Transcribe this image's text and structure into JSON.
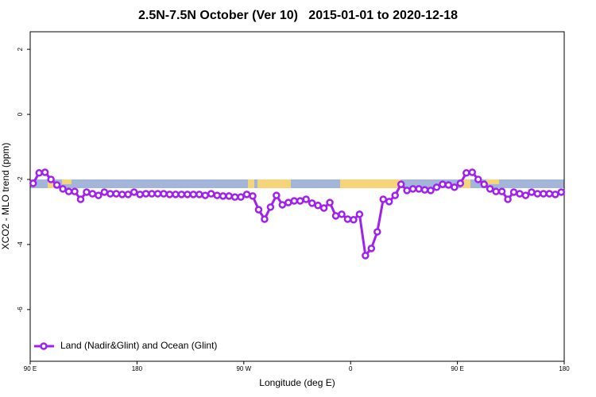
{
  "chart_data": {
    "type": "line",
    "title": "2.5N-7.5N October (Ver 10)   2015-01-01 to 2020-12-18",
    "x_label": "Longitude (deg E)",
    "y_label": "XCO2 - MLO trend (ppm)",
    "xlim": [
      90,
      540
    ],
    "xticks": [
      {
        "value": 90,
        "label": "90 E"
      },
      180,
      {
        "value": 270,
        "label": "90 W"
      },
      {
        "value": 360,
        "label": "0"
      },
      {
        "value": 450,
        "label": "90 E"
      },
      180
    ],
    "ylim": [
      -7.59,
      2.54
    ],
    "yticks": [
      2,
      0,
      -2,
      -4,
      -6
    ],
    "legend": "bottom-left",
    "x": [
      92.5,
      97.5,
      102.5,
      107.5,
      112.5,
      117.5,
      122.5,
      127.5,
      132.5,
      137.5,
      142.5,
      147.5,
      152.5,
      157.5,
      162.5,
      167.5,
      172.5,
      177.5,
      182.5,
      187.5,
      192.5,
      197.5,
      202.5,
      207.5,
      212.5,
      217.5,
      222.5,
      227.5,
      232.5,
      237.5,
      242.5,
      247.5,
      252.5,
      257.5,
      262.5,
      267.5,
      272.5,
      277.5,
      282.5,
      287.5,
      292.5,
      297.5,
      302.5,
      307.5,
      312.5,
      317.5,
      322.5,
      327.5,
      332.5,
      337.5,
      342.5,
      347.5,
      352.5,
      357.5,
      362.5,
      367.5,
      372.5,
      377.5,
      382.5,
      387.5,
      392.5,
      397.5,
      402.5,
      407.5,
      412.5,
      417.5,
      422.5,
      427.5,
      432.5,
      437.5,
      442.5,
      447.5,
      452.5,
      457.5,
      462.5,
      467.5,
      472.5,
      477.5,
      482.5,
      487.5,
      492.5,
      497.5,
      502.5,
      507.5,
      512.5,
      517.5,
      522.5,
      527.5,
      532.5,
      537.5
    ],
    "series": [
      {
        "name": "Land (Nadir&Glint) and Ocean (Glint)",
        "color": "#a020f0",
        "values": [
          -2.12,
          -1.8,
          -1.78,
          -2.0,
          -2.17,
          -2.29,
          -2.37,
          -2.37,
          -2.61,
          -2.39,
          -2.44,
          -2.49,
          -2.39,
          -2.44,
          -2.44,
          -2.46,
          -2.46,
          -2.39,
          -2.46,
          -2.44,
          -2.44,
          -2.44,
          -2.44,
          -2.46,
          -2.46,
          -2.46,
          -2.46,
          -2.46,
          -2.46,
          -2.49,
          -2.44,
          -2.49,
          -2.51,
          -2.51,
          -2.54,
          -2.54,
          -2.46,
          -2.51,
          -2.93,
          -3.22,
          -2.85,
          -2.49,
          -2.78,
          -2.71,
          -2.66,
          -2.66,
          -2.61,
          -2.73,
          -2.8,
          -2.88,
          -2.71,
          -3.12,
          -3.07,
          -3.22,
          -3.24,
          -3.07,
          -4.34,
          -4.12,
          -3.61,
          -2.61,
          -2.68,
          -2.49,
          -2.15,
          -2.34,
          -2.29,
          -2.29,
          -2.32,
          -2.34,
          -2.24,
          -2.15,
          -2.17,
          -2.24,
          -2.12,
          -1.8,
          -1.78,
          -2.0,
          -2.15,
          -2.29,
          -2.37,
          -2.37,
          -2.61,
          -2.39,
          -2.44,
          -2.49,
          -2.39,
          -2.44,
          -2.44,
          -2.44,
          -2.46,
          -2.39
        ]
      }
    ]
  }
}
